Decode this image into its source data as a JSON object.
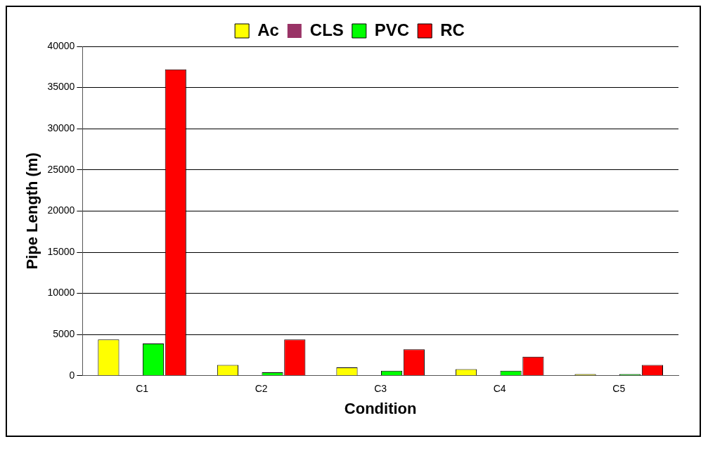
{
  "chart_data": {
    "type": "bar",
    "xlabel": "Condition",
    "ylabel": "Pipe Length (m)",
    "categories": [
      "C1",
      "C2",
      "C3",
      "C4",
      "C5"
    ],
    "series": [
      {
        "name": "Ac",
        "color": "#ffff00",
        "values": [
          4400,
          1300,
          1000,
          800,
          200
        ]
      },
      {
        "name": "CLS",
        "color": "#993366",
        "values": [
          0,
          0,
          0,
          0,
          0
        ]
      },
      {
        "name": "PVC",
        "color": "#00ff00",
        "values": [
          3900,
          400,
          600,
          600,
          200
        ]
      },
      {
        "name": "RC",
        "color": "#ff0000",
        "values": [
          37200,
          4400,
          3200,
          2300,
          1300
        ]
      }
    ],
    "ylim": [
      0,
      40000
    ],
    "yticks": [
      0,
      5000,
      10000,
      15000,
      20000,
      25000,
      30000,
      35000,
      40000
    ],
    "grid": "y",
    "legend": "top"
  }
}
